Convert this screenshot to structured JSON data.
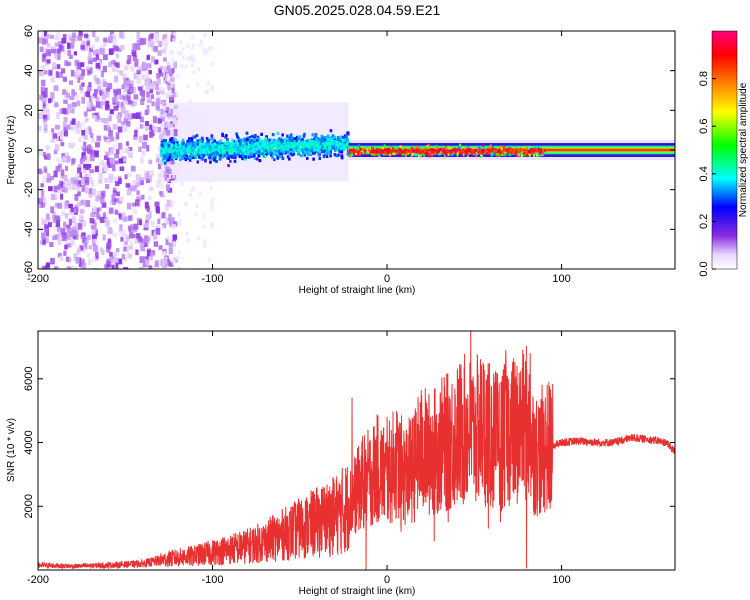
{
  "title": "GN05.2025.028.04.59.E21",
  "chart_data": [
    {
      "type": "heatmap",
      "xlabel": "Height of straight line (km)",
      "ylabel": "Frequency (Hz)",
      "xlim": [
        -200,
        165
      ],
      "ylim": [
        -60,
        60
      ],
      "xticks": [
        -200,
        -100,
        0,
        100
      ],
      "yticks": [
        -60,
        -40,
        -20,
        0,
        20,
        40,
        60
      ],
      "colorbar": {
        "label": "Normalized spectral amplitude",
        "range": [
          0,
          1
        ],
        "ticks": [
          0.0,
          0.2,
          0.4,
          0.6,
          0.8
        ],
        "tick_labels": [
          "0.0",
          "0.2",
          "0.4",
          "0.6",
          "0.8"
        ],
        "colormap": "rainbow (white-violet-blue-cyan-green-yellow-orange-red-magenta)"
      },
      "features": [
        {
          "x_range": [
            -200,
            -130
          ],
          "freq_range": [
            -60,
            60
          ],
          "amplitude": [
            0.05,
            0.15
          ],
          "description": "scattered broadband noise"
        },
        {
          "x_range": [
            -130,
            -22
          ],
          "freq_range": [
            -8,
            12
          ],
          "amplitude": [
            0.1,
            0.4
          ],
          "description": "central band"
        },
        {
          "x_range": [
            -22,
            165
          ],
          "freq_range": [
            -2,
            2
          ],
          "amplitude": [
            0.8,
            1.0
          ],
          "description": "narrow band near 0 Hz"
        }
      ]
    },
    {
      "type": "line",
      "xlabel": "Height of straight line (km)",
      "ylabel": "SNR (10 * v/v)",
      "xlim": [
        -200,
        165
      ],
      "ylim": [
        0,
        7500
      ],
      "xticks": [
        -200,
        -100,
        0,
        100
      ],
      "yticks": [
        2000,
        4000,
        6000
      ],
      "grid": false,
      "series": [
        {
          "color": "#e83030",
          "x": [
            -200,
            -180,
            -160,
            -140,
            -125,
            -110,
            -100,
            -90,
            -80,
            -70,
            -60,
            -50,
            -40,
            -30,
            -22,
            -18,
            -14,
            -10,
            -5,
            0,
            5,
            10,
            15,
            20,
            25,
            30,
            35,
            40,
            45,
            50,
            55,
            60,
            65,
            70,
            75,
            80,
            85,
            90,
            95,
            100,
            110,
            120,
            130,
            140,
            150,
            160,
            165
          ],
          "values": [
            150,
            120,
            150,
            200,
            350,
            450,
            550,
            650,
            750,
            900,
            1100,
            1300,
            1500,
            1700,
            2000,
            2400,
            2700,
            2900,
            3200,
            2900,
            3400,
            3000,
            3200,
            3800,
            3600,
            3900,
            4000,
            4200,
            4400,
            4300,
            4500,
            4100,
            4000,
            4400,
            4300,
            4600,
            3600,
            3800,
            3900,
            4000,
            4050,
            4000,
            4000,
            4150,
            4100,
            4000,
            3700
          ],
          "peak_markers": {
            "x": [
              -20,
              -14,
              0,
              25,
              48,
              55,
              68,
              80,
              82
            ],
            "values": [
              5400,
              4200,
              4800,
              4800,
              7500,
              6500,
              6900,
              7000,
              6800
            ]
          },
          "dropouts": {
            "x": [
              -12,
              8,
              27,
              35,
              58,
              65,
              80,
              88
            ],
            "values": [
              0,
              1200,
              900,
              1500,
              1300,
              1500,
              50,
              1800
            ]
          }
        }
      ]
    }
  ]
}
